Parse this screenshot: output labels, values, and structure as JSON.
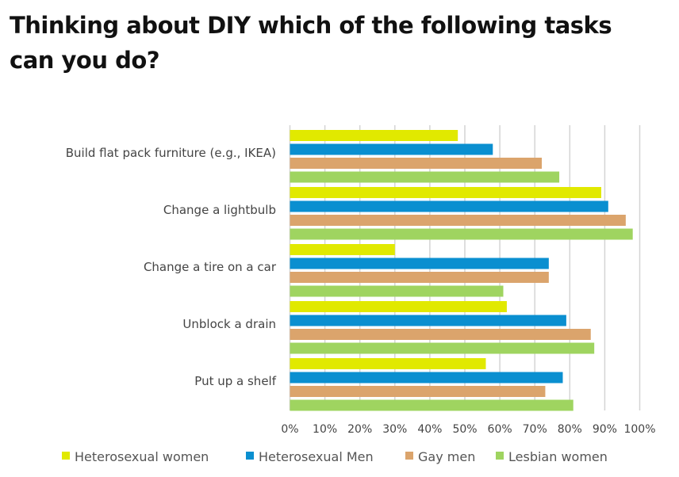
{
  "title": "Thinking about DIY which of the following tasks can you do?",
  "chart_data": {
    "type": "bar",
    "orientation": "horizontal",
    "title": "Thinking about DIY which of the following tasks can you do?",
    "categories": [
      "Build flat pack furniture (e.g., IKEA)",
      "Change a lightbulb",
      "Change a tire on a car",
      "Unblock a drain",
      "Put up a shelf"
    ],
    "series": [
      {
        "name": "Heterosexual women",
        "color": "#e1e900",
        "values": [
          48,
          89,
          30,
          62,
          56
        ]
      },
      {
        "name": "Heterosexual Men",
        "color": "#0a8fd0",
        "values": [
          58,
          91,
          74,
          79,
          78
        ]
      },
      {
        "name": "Gay men",
        "color": "#dba46c",
        "values": [
          72,
          96,
          74,
          86,
          73
        ]
      },
      {
        "name": "Lesbian women",
        "color": "#9fd460",
        "values": [
          77,
          98,
          61,
          87,
          81
        ]
      }
    ],
    "xlim": [
      0,
      100
    ],
    "xticks": [
      "0%",
      "10%",
      "20%",
      "30%",
      "40%",
      "50%",
      "60%",
      "70%",
      "80%",
      "90%",
      "100%"
    ],
    "grid": true,
    "legend": "bottom"
  }
}
